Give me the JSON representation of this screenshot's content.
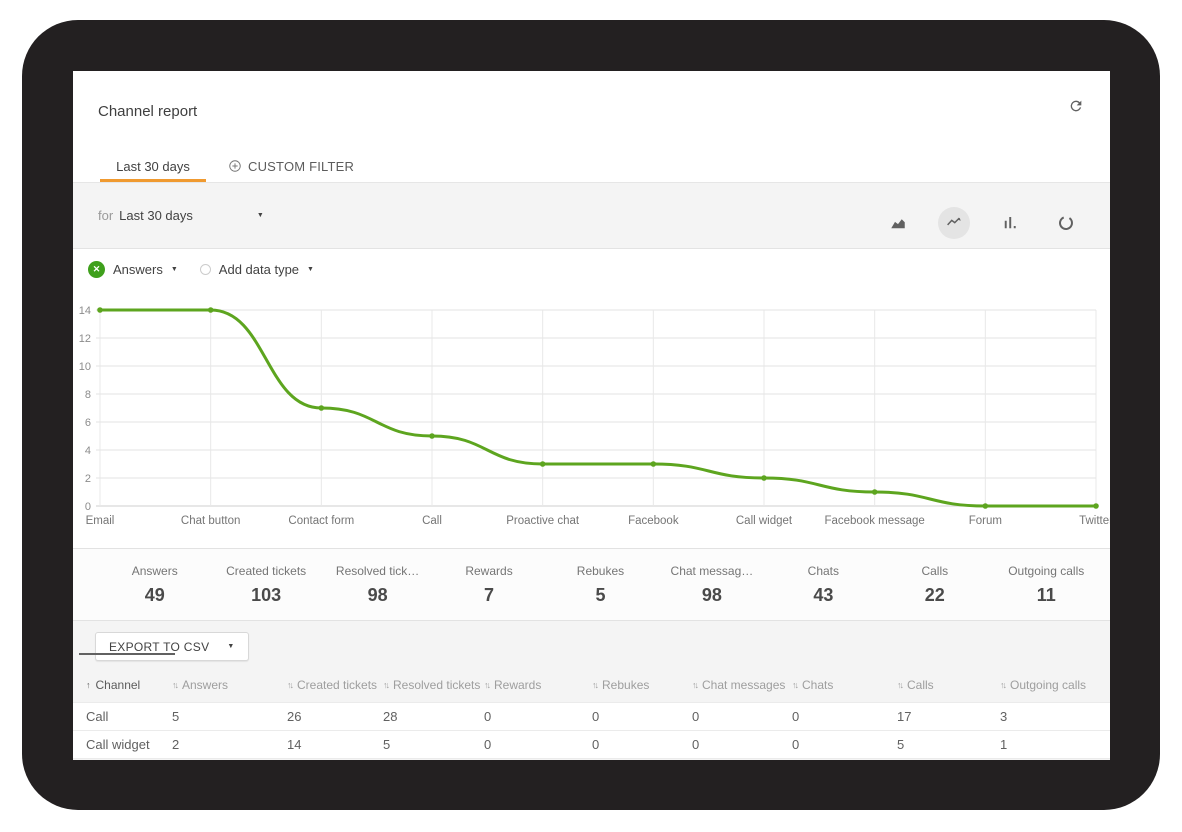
{
  "colors": {
    "accent_orange": "#f09a30",
    "chart_green": "#5da51f",
    "legend_green": "#3fa01c",
    "frame_dark": "#232021"
  },
  "header": {
    "title": "Channel report"
  },
  "tabs": [
    {
      "label": "Last 30 days",
      "active": true
    },
    {
      "label": "CUSTOM FILTER",
      "active": false,
      "icon": "circle-plus-icon"
    }
  ],
  "filter_bar": {
    "prefix": "for",
    "selected_period": "Last 30 days",
    "chart_types": [
      "area-chart",
      "line-chart",
      "bar-chart",
      "donut-chart"
    ],
    "active_chart_type": "line-chart"
  },
  "legend": {
    "series_label": "Answers",
    "add_label": "Add data type"
  },
  "chart_data": {
    "type": "line",
    "categories": [
      "Email",
      "Chat button",
      "Contact form",
      "Call",
      "Proactive chat",
      "Facebook",
      "Call widget",
      "Facebook message",
      "Forum",
      "Twitter"
    ],
    "series": [
      {
        "name": "Answers",
        "values": [
          14,
          14,
          7,
          5,
          3,
          3,
          2,
          1,
          0,
          0
        ]
      }
    ],
    "ylim": [
      0,
      14
    ],
    "yticks": [
      0,
      2,
      4,
      6,
      8,
      10,
      12,
      14
    ],
    "grid": true,
    "legend_position": "top-left",
    "line_color": "#5da51f"
  },
  "stats": [
    {
      "label": "Answers",
      "value": "49"
    },
    {
      "label": "Created tickets",
      "value": "103"
    },
    {
      "label": "Resolved tick…",
      "value": "98"
    },
    {
      "label": "Rewards",
      "value": "7"
    },
    {
      "label": "Rebukes",
      "value": "5"
    },
    {
      "label": "Chat messag…",
      "value": "98"
    },
    {
      "label": "Chats",
      "value": "43"
    },
    {
      "label": "Calls",
      "value": "22"
    },
    {
      "label": "Outgoing calls",
      "value": "11"
    }
  ],
  "export_button": {
    "label": "EXPORT TO CSV"
  },
  "table": {
    "columns": [
      {
        "label": "Channel",
        "sorted": true
      },
      {
        "label": "Answers",
        "sorted": false
      },
      {
        "label": "Created tickets",
        "sorted": false
      },
      {
        "label": "Resolved tickets",
        "sorted": false
      },
      {
        "label": "Rewards",
        "sorted": false
      },
      {
        "label": "Rebukes",
        "sorted": false
      },
      {
        "label": "Chat messages",
        "sorted": false
      },
      {
        "label": "Chats",
        "sorted": false
      },
      {
        "label": "Calls",
        "sorted": false
      },
      {
        "label": "Outgoing calls",
        "sorted": false
      }
    ],
    "rows": [
      {
        "channel": "Call",
        "values": [
          "5",
          "26",
          "28",
          "0",
          "0",
          "0",
          "0",
          "17",
          "3"
        ]
      },
      {
        "channel": "Call widget",
        "values": [
          "2",
          "14",
          "5",
          "0",
          "0",
          "0",
          "0",
          "5",
          "1"
        ]
      }
    ]
  }
}
